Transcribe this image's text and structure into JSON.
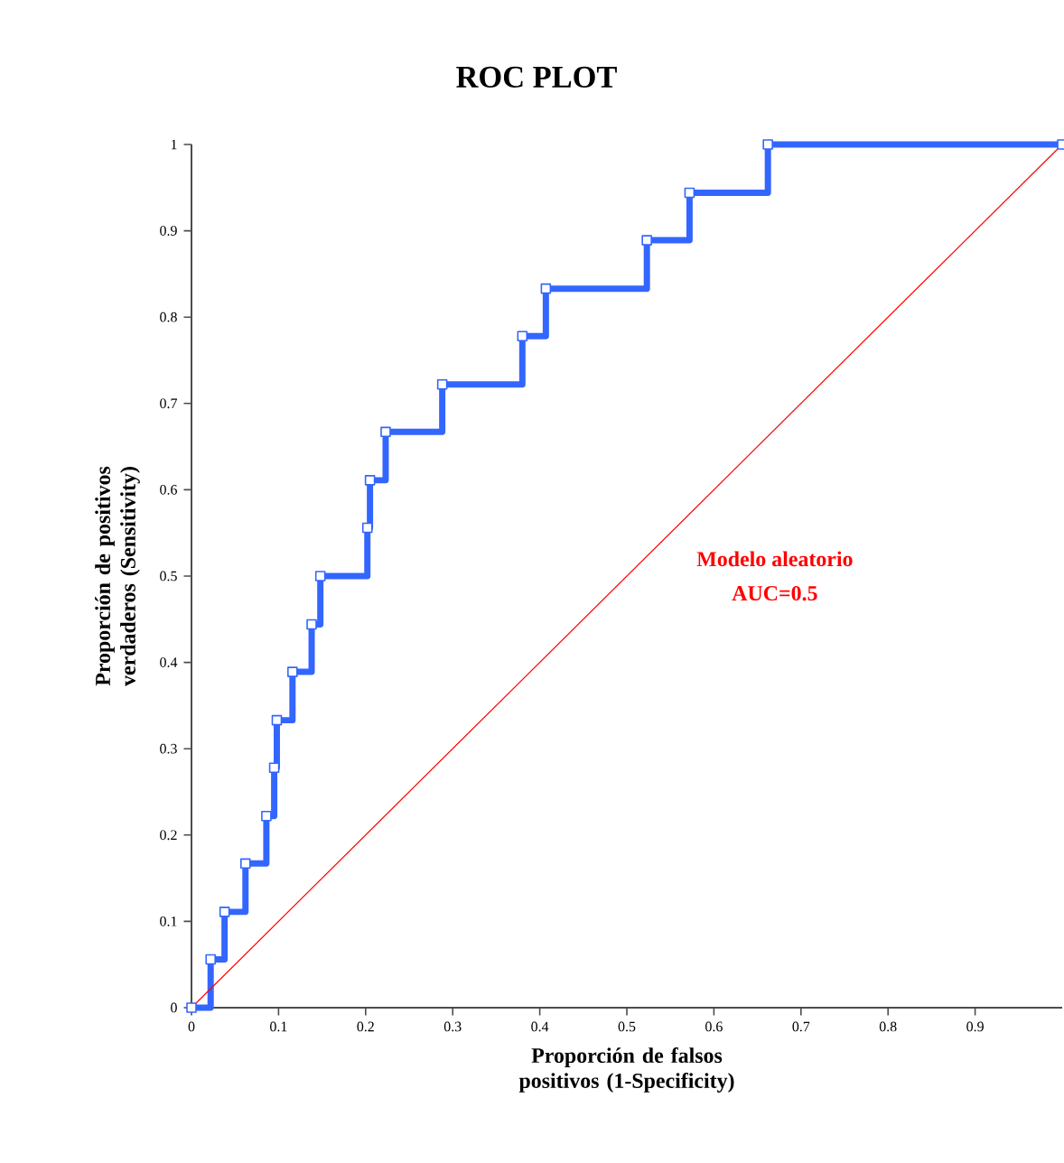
{
  "chart_data": {
    "type": "step",
    "title": "ROC PLOT",
    "xlabel": "Proporción de falsos positivos (1-Specificity)",
    "ylabel": "Proporción de  positivos  verdaderos (Sensitivity)",
    "series": [
      {
        "color": "#3366ff",
        "marker": "square",
        "x": [
          0,
          0.022,
          0.038,
          0.062,
          0.086,
          0.095,
          0.098,
          0.116,
          0.138,
          0.148,
          0.202,
          0.205,
          0.223,
          0.288,
          0.38,
          0.407,
          0.523,
          0.572,
          0.662,
          1
        ],
        "values": [
          0,
          0.056,
          0.111,
          0.167,
          0.222,
          0.278,
          0.333,
          0.389,
          0.444,
          0.5,
          0.556,
          0.611,
          0.667,
          0.722,
          0.778,
          0.833,
          0.889,
          0.944,
          1,
          1
        ]
      },
      {
        "type": "line",
        "color": "#ff0000",
        "marker": "none",
        "x": [
          0,
          1
        ],
        "values": [
          0,
          1
        ]
      }
    ],
    "annotations": [
      "Modelo aleatorio",
      "AUC=0.5"
    ],
    "xlim": [
      0,
      1
    ],
    "ylim": [
      0,
      1
    ],
    "xticks": [
      0,
      0.1,
      0.2,
      0.3,
      0.4,
      0.5,
      0.6,
      0.7,
      0.8,
      0.9
    ],
    "yticks": [
      0,
      0.1,
      0.2,
      0.3,
      0.4,
      0.5,
      0.6,
      0.7,
      0.8,
      0.9,
      1
    ],
    "grid": false
  }
}
